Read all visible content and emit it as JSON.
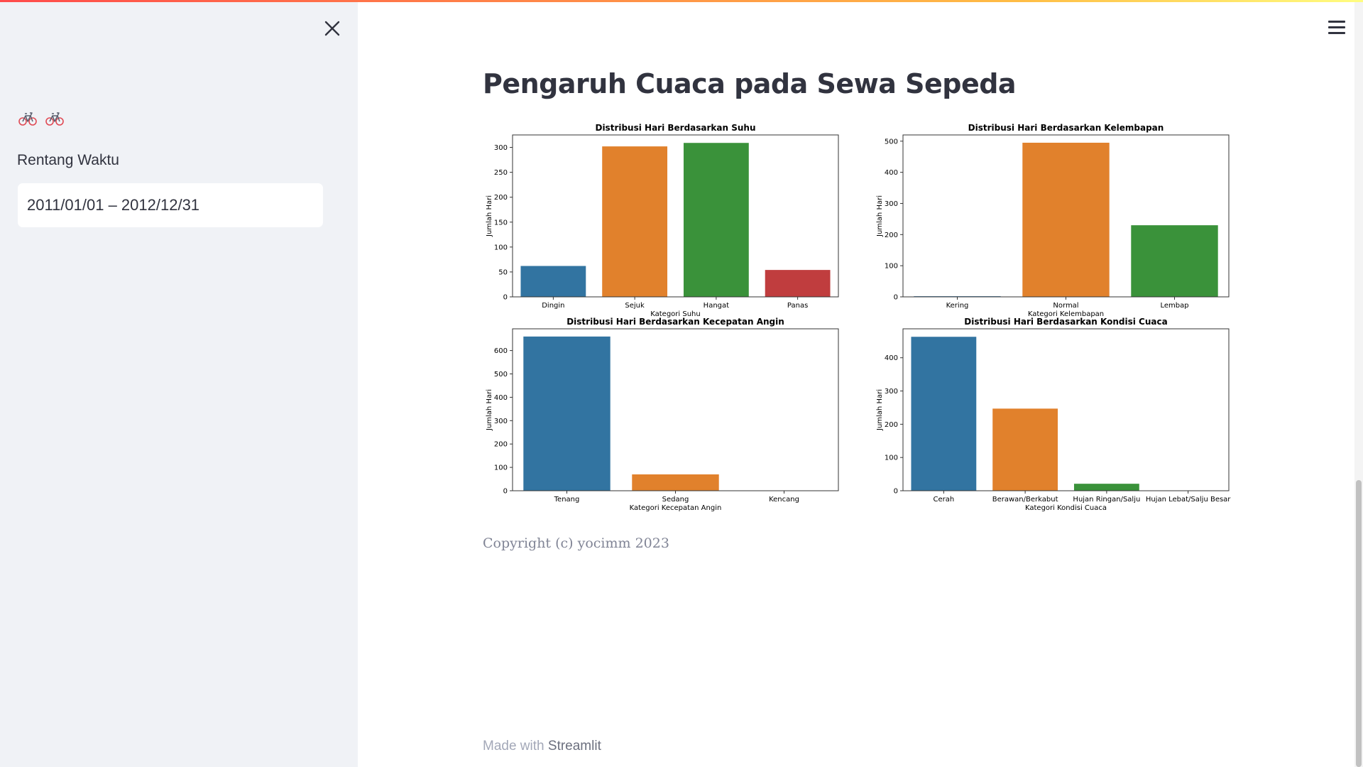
{
  "app": {
    "sidebar": {
      "date_range_label": "Rentang Waktu",
      "date_range_value": "2011/01/01 – 2012/12/31",
      "header_icons": [
        "bicycle-icon",
        "bicycle-icon"
      ]
    },
    "main": {
      "title": "Pengaruh Cuaca pada Sewa Sepeda",
      "copyright": "Copyright (c) yocimm 2023"
    },
    "footer": {
      "made_with": "Made with",
      "streamlit": "Streamlit"
    },
    "colors": {
      "sidebar_bg": "#f0f2f6",
      "accent_red": "#ff4b4b",
      "bar_palette": [
        "#3274a1",
        "#e1812c",
        "#3a923a",
        "#c03d3e"
      ]
    }
  },
  "chart_data": [
    {
      "type": "bar",
      "title": "Distribusi Hari Berdasarkan Suhu",
      "xlabel": "Kategori Suhu",
      "ylabel": "Jumlah Hari",
      "categories": [
        "Dingin",
        "Sejuk",
        "Hangat",
        "Panas"
      ],
      "values": [
        62,
        302,
        309,
        54
      ],
      "ylim": [
        0,
        325
      ],
      "yticks": [
        0,
        50,
        100,
        150,
        200,
        250,
        300
      ]
    },
    {
      "type": "bar",
      "title": "Distribusi Hari Berdasarkan Kelembapan",
      "xlabel": "Kategori Kelembapan",
      "ylabel": "Jumlah Hari",
      "categories": [
        "Kering",
        "Normal",
        "Lembap"
      ],
      "values": [
        2,
        495,
        230
      ],
      "ylim": [
        0,
        520
      ],
      "yticks": [
        0,
        100,
        200,
        300,
        400,
        500
      ]
    },
    {
      "type": "bar",
      "title": "Distribusi Hari Berdasarkan Kecepatan Angin",
      "xlabel": "Kategori Kecepatan Angin",
      "ylabel": "Jumlah Hari",
      "categories": [
        "Tenang",
        "Sedang",
        "Kencang"
      ],
      "values": [
        660,
        70,
        0
      ],
      "ylim": [
        0,
        693
      ],
      "yticks": [
        0,
        100,
        200,
        300,
        400,
        500,
        600
      ]
    },
    {
      "type": "bar",
      "title": "Distribusi Hari Berdasarkan Kondisi Cuaca",
      "xlabel": "Kategori Kondisi Cuaca",
      "ylabel": "Jumlah Hari",
      "categories": [
        "Cerah",
        "Berawan/Berkabut",
        "Hujan Ringan/Salju",
        "Hujan Lebat/Salju Besar"
      ],
      "values": [
        463,
        247,
        21,
        0
      ],
      "ylim": [
        0,
        487
      ],
      "yticks": [
        0,
        100,
        200,
        300,
        400
      ]
    }
  ]
}
